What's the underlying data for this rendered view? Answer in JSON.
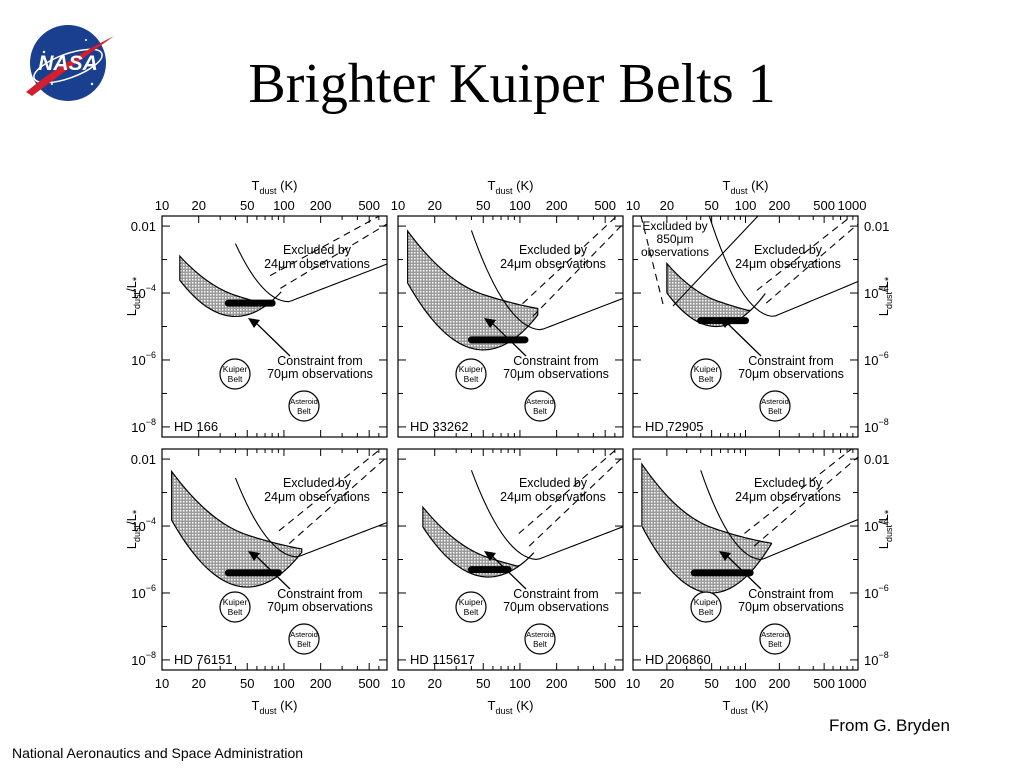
{
  "slide": {
    "title": "Brighter Kuiper Belts 1",
    "credit": "From G. Bryden",
    "footer": "National Aeronautics and Space Administration",
    "logo_text": "NASA"
  },
  "chart_data": {
    "type": "scatter",
    "layout": "2x3 grid of panels",
    "x_axis": {
      "label": "T",
      "label_sub": "dust",
      "unit": "(K)",
      "scale": "log",
      "ticks": [
        "10",
        "20",
        "50",
        "100",
        "200",
        "500",
        "1000"
      ],
      "xlim": [
        10,
        700
      ],
      "xlim_right_column": [
        10,
        1000
      ]
    },
    "y_axis": {
      "label": "L",
      "label_sub1": "dust",
      "label_mid": "/L",
      "label_sub2": "*",
      "scale": "log",
      "ticks": [
        {
          "value": 0.01,
          "label": "0.01",
          "exp": ""
        },
        {
          "value": 0.0001,
          "label": "10",
          "exp": "−4"
        },
        {
          "value": 1e-06,
          "label": "10",
          "exp": "−6"
        },
        {
          "value": 1e-08,
          "label": "10",
          "exp": "−8"
        }
      ],
      "ylim": [
        5e-09,
        0.02
      ]
    },
    "annotations": {
      "excluded24_line1": "Excluded by",
      "excluded24_line2_unit": "μm observations",
      "excluded24_value": "24",
      "excluded850_line1": "Excluded by",
      "excluded850_value": "850",
      "excluded850_unit": "μm",
      "excluded850_line3": "observations",
      "constraint_line1": "Constraint from",
      "constraint_value": "70",
      "constraint_unit": "μm observations",
      "kuiper_line1": "Kuiper",
      "kuiper_line2": "Belt",
      "asteroid_line1": "Asteroid",
      "asteroid_line2": "Belt"
    },
    "panels": [
      {
        "name": "HD  166",
        "row": 0,
        "col": 0,
        "band": {
          "t_min": 14,
          "t_max": 95,
          "upper_l": 0.0003,
          "lower_l": 2e-05,
          "min_t": 40
        },
        "core": {
          "t_min": 35,
          "t_max": 80,
          "l": 5e-05
        },
        "excl24_min": {
          "t": 110,
          "l": 5.5e-05
        },
        "excl850": false
      },
      {
        "name": "HD  33262",
        "row": 0,
        "col": 1,
        "band": {
          "t_min": 12,
          "t_max": 140,
          "upper_l": 0.0005,
          "lower_l": 2e-06,
          "min_t": 50
        },
        "core": {
          "t_min": 40,
          "t_max": 110,
          "l": 4e-06
        },
        "excl24_min": {
          "t": 150,
          "l": 8e-06
        },
        "excl850": false
      },
      {
        "name": "HD  72905",
        "row": 0,
        "col": 2,
        "band": {
          "t_min": 20,
          "t_max": 150,
          "upper_l": 0.0002,
          "lower_l": 1e-05,
          "min_t": 55
        },
        "core": {
          "t_min": 40,
          "t_max": 100,
          "l": 1.5e-05
        },
        "excl24_min": {
          "t": 180,
          "l": 2e-05
        },
        "excl850": true
      },
      {
        "name": "HD  76151",
        "row": 1,
        "col": 0,
        "band": {
          "t_min": 12,
          "t_max": 140,
          "upper_l": 0.0003,
          "lower_l": 1.5e-06,
          "min_t": 50
        },
        "core": {
          "t_min": 35,
          "t_max": 90,
          "l": 4e-06
        },
        "excl24_min": {
          "t": 130,
          "l": 1.2e-05
        },
        "excl850": false
      },
      {
        "name": "HD  115617",
        "row": 1,
        "col": 1,
        "band": {
          "t_min": 16,
          "t_max": 130,
          "upper_l": 5e-05,
          "lower_l": 3e-06,
          "min_t": 55
        },
        "core": {
          "t_min": 40,
          "t_max": 80,
          "l": 5e-06
        },
        "excl24_min": {
          "t": 140,
          "l": 1e-05
        },
        "excl850": false
      },
      {
        "name": "HD  206860",
        "row": 1,
        "col": 2,
        "band": {
          "t_min": 12,
          "t_max": 170,
          "upper_l": 0.0005,
          "lower_l": 1e-06,
          "min_t": 50
        },
        "core": {
          "t_min": 35,
          "t_max": 110,
          "l": 4e-06
        },
        "excl24_min": {
          "t": 140,
          "l": 1e-05
        },
        "excl850": false
      }
    ]
  }
}
